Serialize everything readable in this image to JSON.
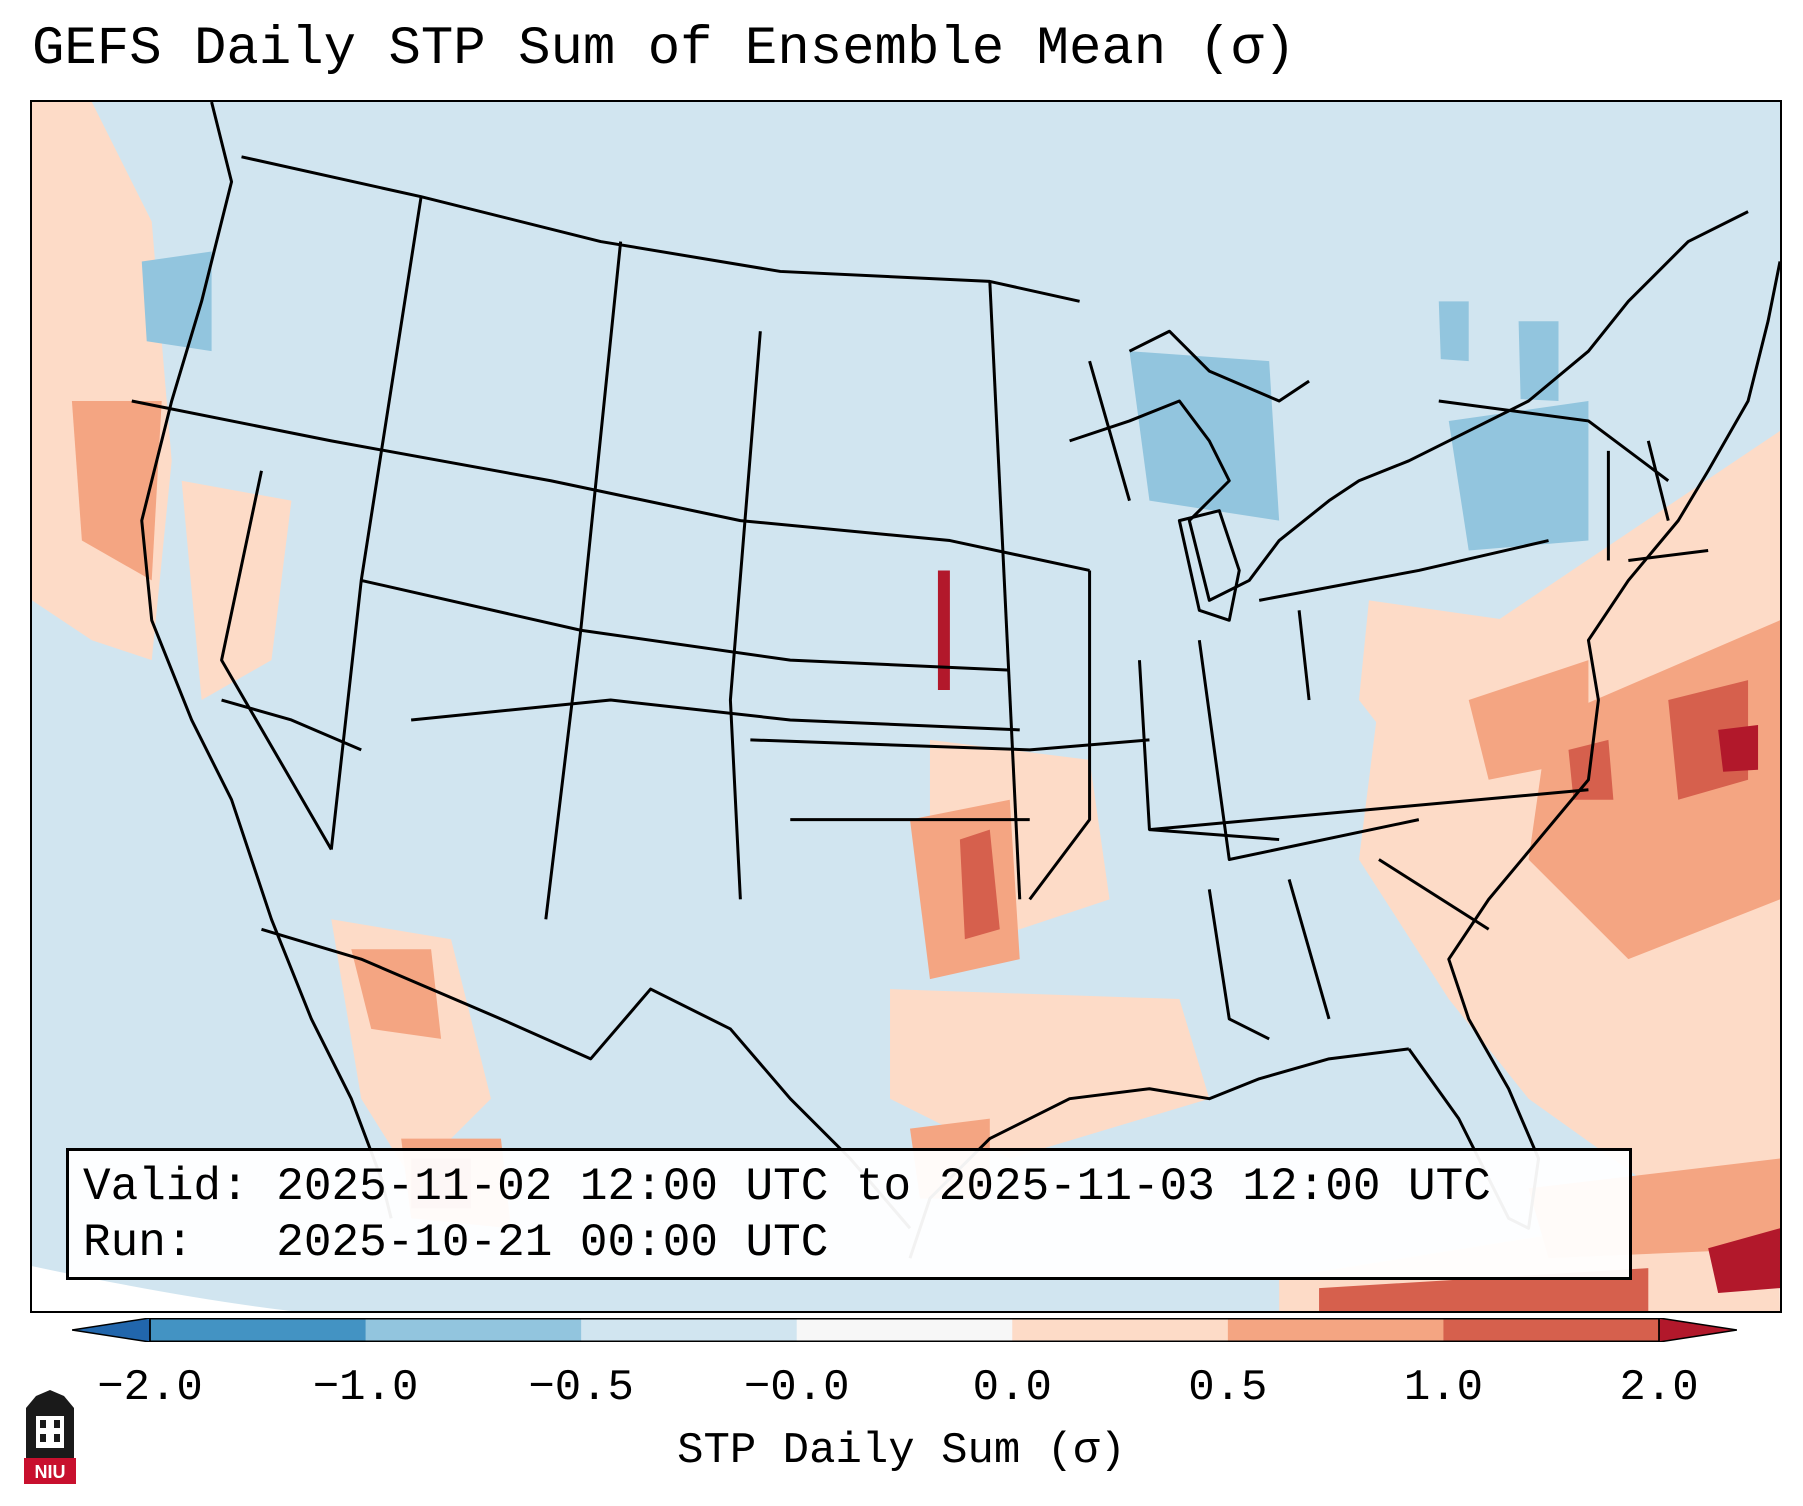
{
  "title": "GEFS Daily STP Sum of Ensemble Mean (σ)",
  "info": {
    "valid_label": "Valid:",
    "valid_value": "2025-11-02 12:00 UTC to 2025-11-03 12:00 UTC",
    "run_label": "Run:",
    "run_value": "2025-10-21 00:00 UTC"
  },
  "colorbar": {
    "label": "STP Daily Sum (σ)",
    "ticks": [
      "−2.0",
      "−1.0",
      "−0.5",
      "−0.0",
      "0.0",
      "0.5",
      "1.0",
      "2.0"
    ],
    "bin_colors": [
      "#4393c3",
      "#92c5de",
      "#d1e5f0",
      "#f7f7f7",
      "#fddbc7",
      "#f4a582",
      "#d6604d"
    ],
    "under_color": "#2166ac",
    "over_color": "#b2182b"
  },
  "logo": {
    "text": "NIU"
  },
  "colors": {
    "background": "#d1e5f0",
    "outline": "#000000"
  }
}
